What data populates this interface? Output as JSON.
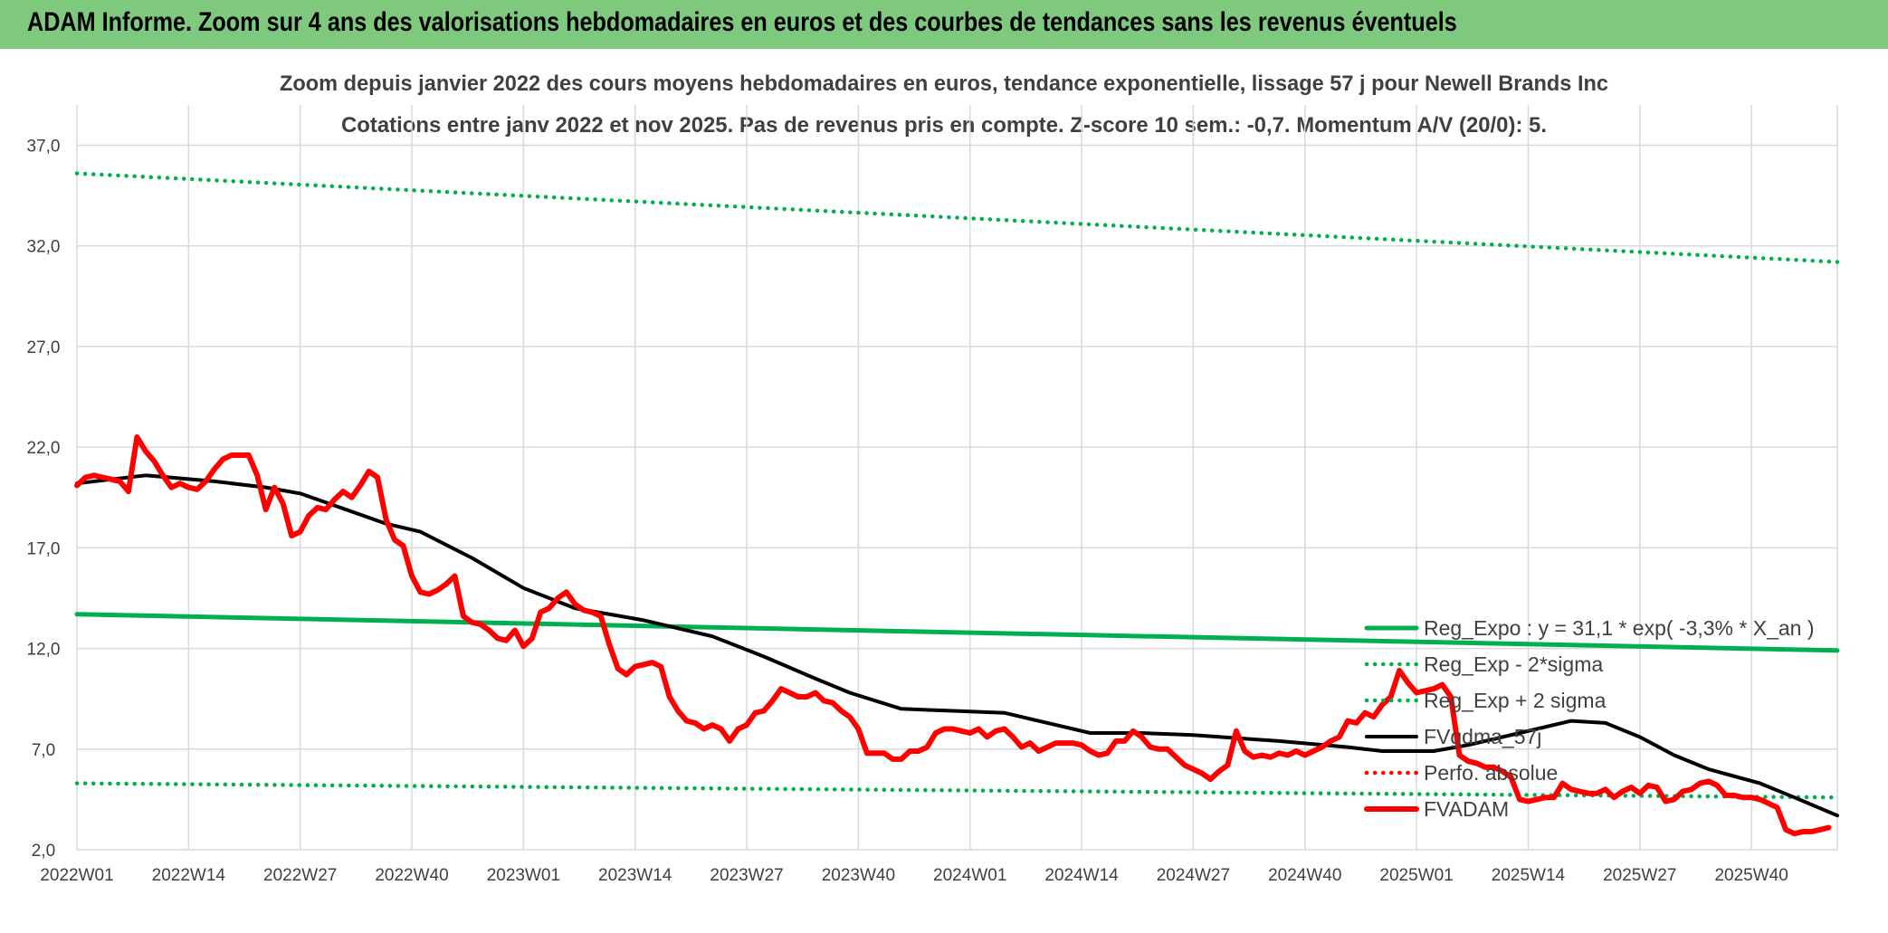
{
  "banner": {
    "title": "ADAM Informe. Zoom sur 4 ans des valorisations hebdomadaires en euros et des courbes de tendances sans les revenus éventuels"
  },
  "chart_data": {
    "type": "line",
    "title": "Zoom depuis janvier 2022 des cours moyens hebdomadaires en euros, tendance exponentielle, lissage 57 j pour Newell Brands Inc",
    "subtitle": "Cotations entre janv 2022 et nov 2025. Pas de revenus pris en compte. Z-score 10 sem.: -0,7. Momentum A/V (20/0): 5.",
    "xlabel": "",
    "ylabel": "",
    "ylim": [
      2,
      39
    ],
    "yticks": [
      "2,0",
      "7,0",
      "12,0",
      "17,0",
      "22,0",
      "27,0",
      "32,0",
      "37,0"
    ],
    "yticks_values": [
      2,
      7,
      12,
      17,
      22,
      27,
      32,
      37
    ],
    "xticks": [
      "2022W01",
      "2022W14",
      "2022W27",
      "2022W40",
      "2023W01",
      "2023W14",
      "2023W27",
      "2023W40",
      "2024W01",
      "2024W14",
      "2024W27",
      "2024W40",
      "2025W01",
      "2025W14",
      "2025W27",
      "2025W40"
    ],
    "week_count": 205,
    "grid": true,
    "legend_position": "right",
    "legend": [
      "Reg_Expo : y = 31,1 * exp( -3,3% *  X_an )",
      "Reg_Exp - 2*sigma",
      "Reg_Exp + 2 sigma",
      "FVgdma_57j",
      "Perfo. absolue",
      "FVADAM"
    ],
    "series": [
      {
        "name": "Reg_Expo : y = 31,1 * exp( -3,3% *  X_an )",
        "style": "solid",
        "color": "#00b050",
        "points": [
          [
            0,
            13.7
          ],
          [
            205,
            11.9
          ]
        ]
      },
      {
        "name": "Reg_Exp - 2*sigma",
        "style": "dotted",
        "color": "#00b050",
        "points": [
          [
            0,
            5.3
          ],
          [
            205,
            4.6
          ]
        ]
      },
      {
        "name": "Reg_Exp + 2 sigma",
        "style": "dotted",
        "color": "#00b050",
        "points": [
          [
            0,
            35.6
          ],
          [
            205,
            31.2
          ]
        ]
      },
      {
        "name": "FVgdma_57j",
        "style": "solid",
        "color": "#000000",
        "points": [
          [
            0,
            20.2
          ],
          [
            8,
            20.6
          ],
          [
            16,
            20.3
          ],
          [
            22,
            20.0
          ],
          [
            26,
            19.7
          ],
          [
            30,
            19.1
          ],
          [
            36,
            18.2
          ],
          [
            40,
            17.8
          ],
          [
            46,
            16.5
          ],
          [
            52,
            15.0
          ],
          [
            58,
            14.0
          ],
          [
            66,
            13.4
          ],
          [
            74,
            12.6
          ],
          [
            80,
            11.6
          ],
          [
            86,
            10.5
          ],
          [
            90,
            9.8
          ],
          [
            96,
            9.0
          ],
          [
            102,
            8.9
          ],
          [
            108,
            8.8
          ],
          [
            114,
            8.2
          ],
          [
            118,
            7.8
          ],
          [
            124,
            7.8
          ],
          [
            130,
            7.7
          ],
          [
            140,
            7.4
          ],
          [
            148,
            7.1
          ],
          [
            152,
            6.9
          ],
          [
            158,
            6.9
          ],
          [
            162,
            7.2
          ],
          [
            168,
            7.8
          ],
          [
            174,
            8.4
          ],
          [
            178,
            8.3
          ],
          [
            182,
            7.6
          ],
          [
            186,
            6.7
          ],
          [
            190,
            6.0
          ],
          [
            196,
            5.3
          ],
          [
            200,
            4.6
          ],
          [
            205,
            3.7
          ]
        ]
      },
      {
        "name": "Perfo. absolue",
        "style": "dotted",
        "color": "#ff0000",
        "points": []
      },
      {
        "name": "FVADAM",
        "style": "solid",
        "color": "#ff0000",
        "points": [
          [
            0,
            20.1
          ],
          [
            1,
            20.5
          ],
          [
            2,
            20.6
          ],
          [
            3,
            20.5
          ],
          [
            4,
            20.4
          ],
          [
            5,
            20.3
          ],
          [
            6,
            19.8
          ],
          [
            7,
            22.5
          ],
          [
            8,
            21.8
          ],
          [
            9,
            21.3
          ],
          [
            10,
            20.6
          ],
          [
            11,
            20.0
          ],
          [
            12,
            20.2
          ],
          [
            13,
            20.0
          ],
          [
            14,
            19.9
          ],
          [
            15,
            20.3
          ],
          [
            16,
            20.9
          ],
          [
            17,
            21.4
          ],
          [
            18,
            21.6
          ],
          [
            19,
            21.6
          ],
          [
            20,
            21.6
          ],
          [
            21,
            20.6
          ],
          [
            22,
            18.9
          ],
          [
            23,
            20.0
          ],
          [
            24,
            19.2
          ],
          [
            25,
            17.6
          ],
          [
            26,
            17.8
          ],
          [
            27,
            18.6
          ],
          [
            28,
            19.0
          ],
          [
            29,
            18.9
          ],
          [
            30,
            19.4
          ],
          [
            31,
            19.8
          ],
          [
            32,
            19.5
          ],
          [
            33,
            20.1
          ],
          [
            34,
            20.8
          ],
          [
            35,
            20.5
          ],
          [
            36,
            18.4
          ],
          [
            37,
            17.4
          ],
          [
            38,
            17.1
          ],
          [
            39,
            15.6
          ],
          [
            40,
            14.8
          ],
          [
            41,
            14.7
          ],
          [
            42,
            14.9
          ],
          [
            43,
            15.2
          ],
          [
            44,
            15.6
          ],
          [
            45,
            13.6
          ],
          [
            46,
            13.3
          ],
          [
            47,
            13.2
          ],
          [
            48,
            12.9
          ],
          [
            49,
            12.5
          ],
          [
            50,
            12.4
          ],
          [
            51,
            12.9
          ],
          [
            52,
            12.1
          ],
          [
            53,
            12.5
          ],
          [
            54,
            13.8
          ],
          [
            55,
            14.0
          ],
          [
            56,
            14.5
          ],
          [
            57,
            14.8
          ],
          [
            58,
            14.2
          ],
          [
            59,
            13.9
          ],
          [
            60,
            13.8
          ],
          [
            61,
            13.6
          ],
          [
            62,
            12.2
          ],
          [
            63,
            11.0
          ],
          [
            64,
            10.7
          ],
          [
            65,
            11.1
          ],
          [
            66,
            11.2
          ],
          [
            67,
            11.3
          ],
          [
            68,
            11.1
          ],
          [
            69,
            9.6
          ],
          [
            70,
            8.9
          ],
          [
            71,
            8.4
          ],
          [
            72,
            8.3
          ],
          [
            73,
            8.0
          ],
          [
            74,
            8.2
          ],
          [
            75,
            8.0
          ],
          [
            76,
            7.4
          ],
          [
            77,
            8.0
          ],
          [
            78,
            8.2
          ],
          [
            79,
            8.8
          ],
          [
            80,
            8.9
          ],
          [
            81,
            9.4
          ],
          [
            82,
            10.0
          ],
          [
            83,
            9.8
          ],
          [
            84,
            9.6
          ],
          [
            85,
            9.6
          ],
          [
            86,
            9.8
          ],
          [
            87,
            9.4
          ],
          [
            88,
            9.3
          ],
          [
            89,
            8.9
          ],
          [
            90,
            8.6
          ],
          [
            91,
            8.0
          ],
          [
            92,
            6.8
          ],
          [
            93,
            6.8
          ],
          [
            94,
            6.8
          ],
          [
            95,
            6.5
          ],
          [
            96,
            6.5
          ],
          [
            97,
            6.9
          ],
          [
            98,
            6.9
          ],
          [
            99,
            7.1
          ],
          [
            100,
            7.8
          ],
          [
            101,
            8.0
          ],
          [
            102,
            8.0
          ],
          [
            103,
            7.9
          ],
          [
            104,
            7.8
          ],
          [
            105,
            8.0
          ],
          [
            106,
            7.6
          ],
          [
            107,
            7.9
          ],
          [
            108,
            8.0
          ],
          [
            109,
            7.6
          ],
          [
            110,
            7.1
          ],
          [
            111,
            7.3
          ],
          [
            112,
            6.9
          ],
          [
            113,
            7.1
          ],
          [
            114,
            7.3
          ],
          [
            115,
            7.3
          ],
          [
            116,
            7.3
          ],
          [
            117,
            7.2
          ],
          [
            118,
            6.9
          ],
          [
            119,
            6.7
          ],
          [
            120,
            6.8
          ],
          [
            121,
            7.4
          ],
          [
            122,
            7.4
          ],
          [
            123,
            7.9
          ],
          [
            124,
            7.6
          ],
          [
            125,
            7.1
          ],
          [
            126,
            7.0
          ],
          [
            127,
            7.0
          ],
          [
            128,
            6.6
          ],
          [
            129,
            6.2
          ],
          [
            130,
            6.0
          ],
          [
            131,
            5.8
          ],
          [
            132,
            5.5
          ],
          [
            133,
            5.9
          ],
          [
            134,
            6.2
          ],
          [
            135,
            7.9
          ],
          [
            136,
            6.9
          ],
          [
            137,
            6.6
          ],
          [
            138,
            6.7
          ],
          [
            139,
            6.6
          ],
          [
            140,
            6.8
          ],
          [
            141,
            6.7
          ],
          [
            142,
            6.9
          ],
          [
            143,
            6.7
          ],
          [
            144,
            6.9
          ],
          [
            145,
            7.1
          ],
          [
            146,
            7.4
          ],
          [
            147,
            7.6
          ],
          [
            148,
            8.4
          ],
          [
            149,
            8.3
          ],
          [
            150,
            8.8
          ],
          [
            151,
            8.6
          ],
          [
            152,
            9.2
          ],
          [
            153,
            9.6
          ],
          [
            154,
            10.9
          ],
          [
            155,
            10.3
          ],
          [
            156,
            9.8
          ],
          [
            157,
            9.9
          ],
          [
            158,
            10.0
          ],
          [
            159,
            10.2
          ],
          [
            160,
            9.6
          ],
          [
            161,
            6.7
          ],
          [
            162,
            6.4
          ],
          [
            163,
            6.3
          ],
          [
            164,
            6.1
          ],
          [
            165,
            6.1
          ],
          [
            166,
            5.9
          ],
          [
            167,
            5.6
          ],
          [
            168,
            4.5
          ],
          [
            169,
            4.4
          ],
          [
            170,
            4.5
          ],
          [
            171,
            4.6
          ],
          [
            172,
            4.6
          ],
          [
            173,
            5.3
          ],
          [
            174,
            5.0
          ],
          [
            175,
            4.9
          ],
          [
            176,
            4.8
          ],
          [
            177,
            4.8
          ],
          [
            178,
            5.0
          ],
          [
            179,
            4.6
          ],
          [
            180,
            4.9
          ],
          [
            181,
            5.1
          ],
          [
            182,
            4.8
          ],
          [
            183,
            5.2
          ],
          [
            184,
            5.1
          ],
          [
            185,
            4.4
          ],
          [
            186,
            4.5
          ],
          [
            187,
            4.9
          ],
          [
            188,
            5.0
          ],
          [
            189,
            5.3
          ],
          [
            190,
            5.4
          ],
          [
            191,
            5.2
          ],
          [
            192,
            4.7
          ],
          [
            193,
            4.7
          ],
          [
            194,
            4.6
          ],
          [
            195,
            4.6
          ],
          [
            196,
            4.5
          ],
          [
            197,
            4.3
          ],
          [
            198,
            4.1
          ],
          [
            199,
            3.0
          ],
          [
            200,
            2.8
          ],
          [
            201,
            2.9
          ],
          [
            202,
            2.9
          ],
          [
            203,
            3.0
          ],
          [
            204,
            3.1
          ]
        ]
      }
    ]
  }
}
